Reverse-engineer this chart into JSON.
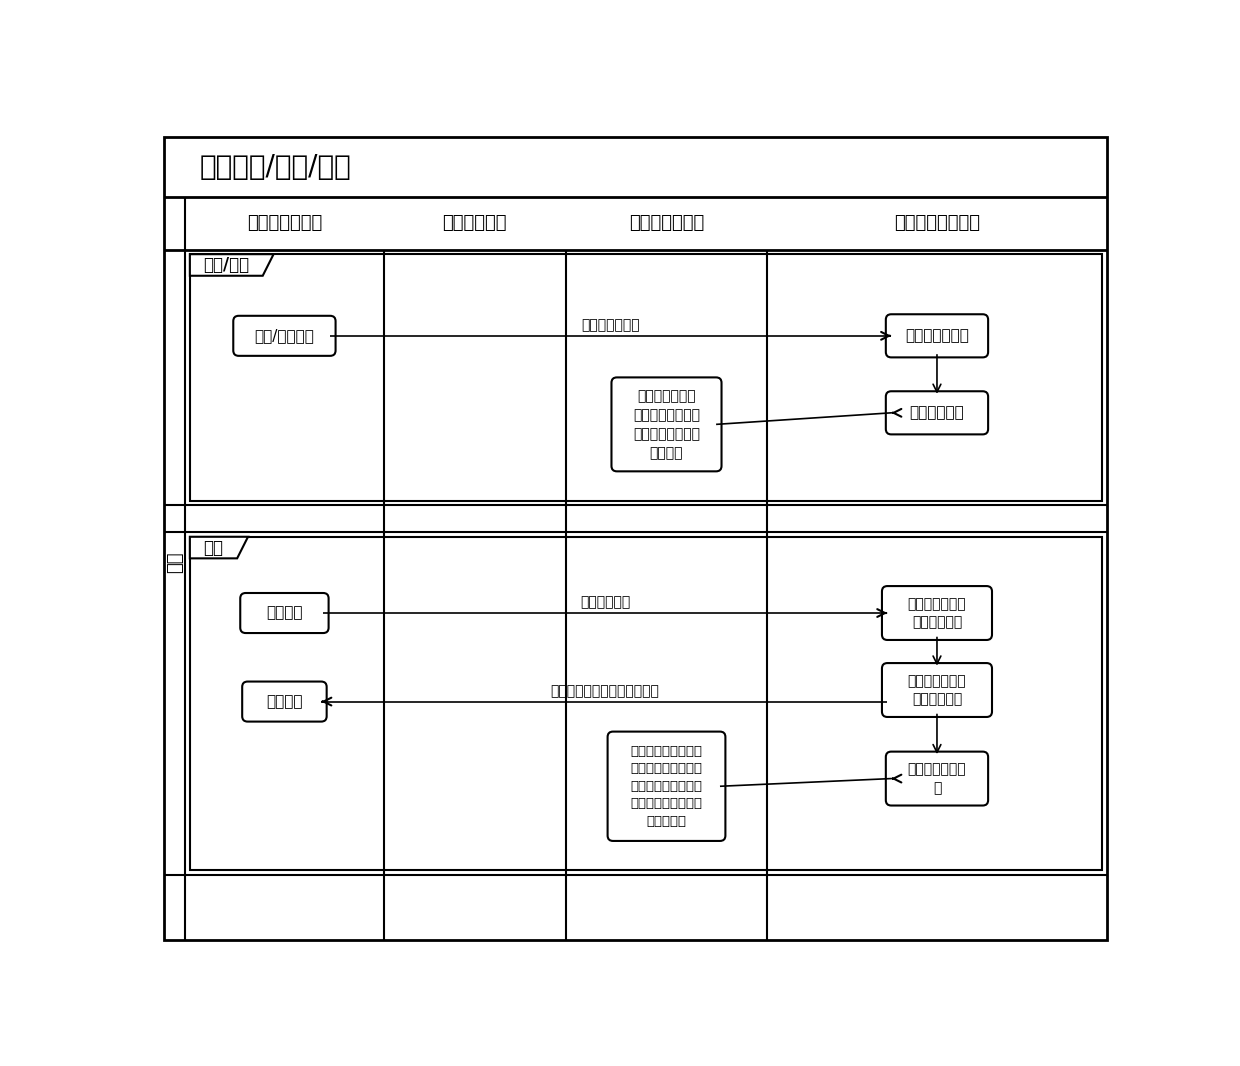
{
  "title": "用户开户/销户/充值",
  "col_headers": [
    "密钥应用层设备",
    "密钥管理终端",
    "密钥管理服务器",
    "量子业务支撑系统"
  ],
  "row_label": "阶段",
  "section1_label": "开户/销户",
  "section2_label": "充值",
  "bg_color": "#ffffff",
  "line_color": "#000000",
  "title_fontsize": 20,
  "header_fontsize": 13,
  "body_fontsize": 11,
  "small_fontsize": 10
}
